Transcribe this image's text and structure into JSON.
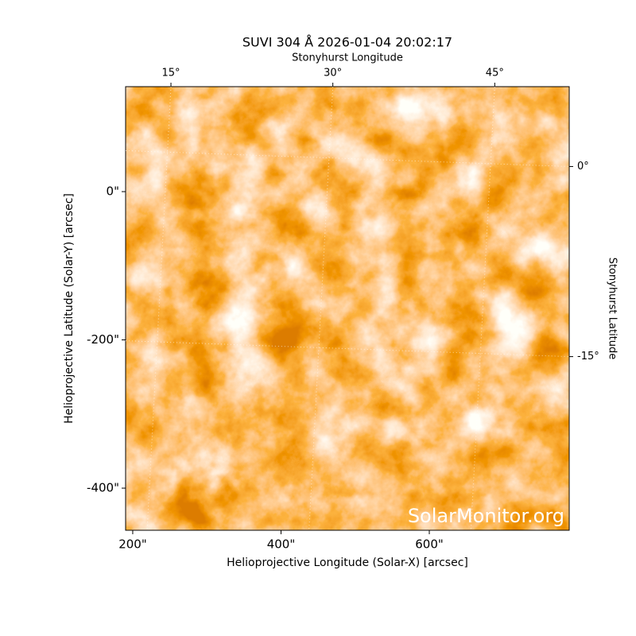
{
  "chart_data": {
    "type": "image",
    "title": "SUVI 304 Å 2026-01-04 20:02:17",
    "xlabel": "Helioprojective Longitude (Solar-X) [arcsec]",
    "ylabel": "Helioprojective Latitude (Solar-Y) [arcsec]",
    "x2label": "Stonyhurst Longitude",
    "y2label": "Stonyhurst Latitude",
    "watermark": "SolarMonitor.org",
    "xlim": [
      190.4,
      788.7
    ],
    "xticks": [
      {
        "value": 200,
        "label": "200\""
      },
      {
        "value": 400,
        "label": "400\""
      },
      {
        "value": 600,
        "label": "600\""
      }
    ],
    "ylim": [
      -456.8,
      141.6
    ],
    "yticks": [
      {
        "value": -400,
        "label": "-400\""
      },
      {
        "value": -200,
        "label": "-200\""
      },
      {
        "value": 0,
        "label": "0\""
      }
    ],
    "x2lim": [
      10.8,
      51.9
    ],
    "x2ticks": [
      {
        "value": 15,
        "label": "15°"
      },
      {
        "value": 30,
        "label": "30°"
      },
      {
        "value": 45,
        "label": "45°"
      }
    ],
    "y2lim": [
      -28.7,
      6.3
    ],
    "y2ticks": [
      {
        "value": -15,
        "label": "-15°"
      },
      {
        "value": 0,
        "label": "0°"
      }
    ],
    "grid": true
  }
}
